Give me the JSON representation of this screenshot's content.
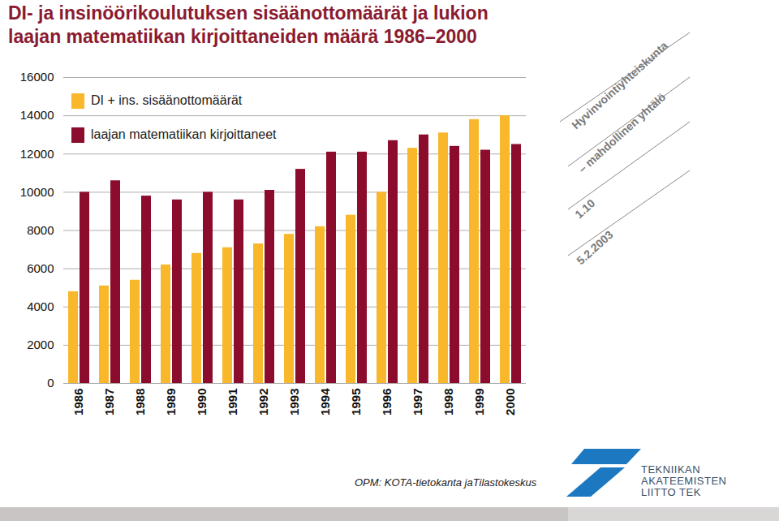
{
  "chart_data": {
    "type": "bar",
    "title": "DI- ja insinöörikoulutuksen sisäänottomäärät ja lukion\nlaajan matematiikan kirjoittaneiden määrä 1986–2000",
    "categories": [
      "1986",
      "1987",
      "1988",
      "1989",
      "1990",
      "1991",
      "1992",
      "1993",
      "1994",
      "1995",
      "1996",
      "1997",
      "1998",
      "1999",
      "2000"
    ],
    "series": [
      {
        "name": "DI + ins. sisäänottomäärät",
        "color": "#f9b72b",
        "values": [
          4800,
          5100,
          5400,
          6200,
          6800,
          7100,
          7300,
          7800,
          8200,
          8800,
          10000,
          12300,
          13100,
          13800,
          14000
        ]
      },
      {
        "name": "laajan matematiikan kirjoittaneet",
        "color": "#8b0c2c",
        "values": [
          10000,
          10600,
          9800,
          9600,
          10000,
          9600,
          10100,
          11200,
          12100,
          12100,
          12700,
          13000,
          12400,
          12200,
          12500
        ]
      }
    ],
    "ylim": [
      0,
      16000
    ],
    "yticks": [
      0,
      2000,
      4000,
      6000,
      8000,
      10000,
      12000,
      14000,
      16000
    ],
    "grid": true,
    "legend": "top-left",
    "annotations": [
      "Hyvinvointiyhteiskunta",
      "– mahdollinen yhtälö",
      "1.10",
      "5.2.2003"
    ],
    "source": "OPM: KOTA-tietokanta jaTilastokeskus",
    "logo_text": [
      "TEKNIIKAN",
      "AKATEEMISTEN",
      "LIITTO TEK"
    ]
  }
}
